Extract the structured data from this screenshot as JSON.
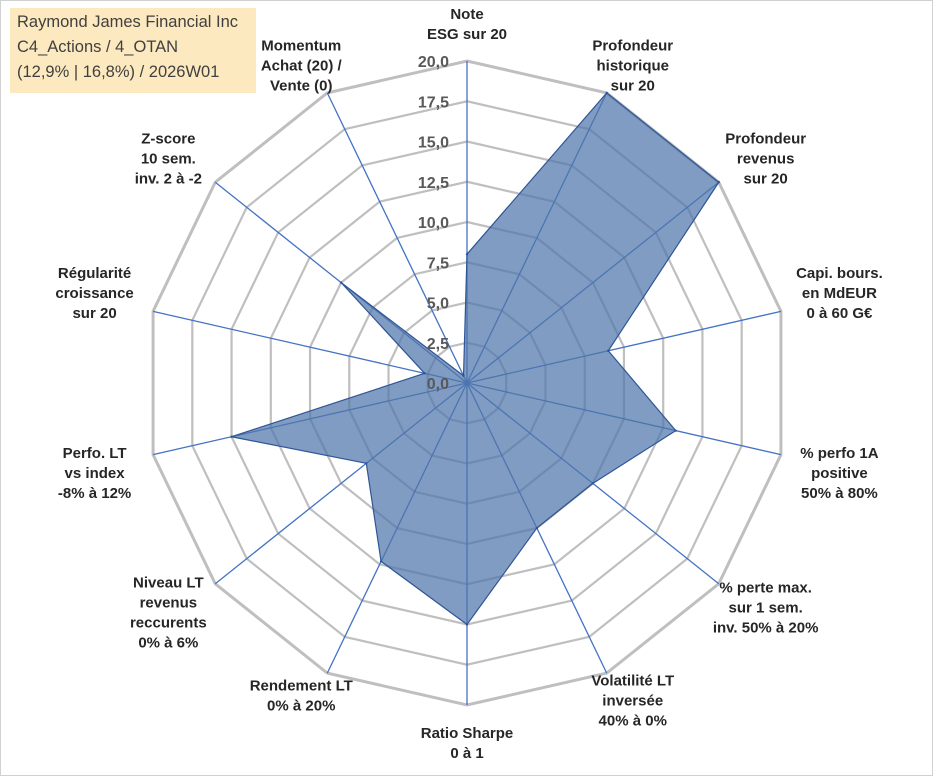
{
  "title_box": {
    "line1": "Raymond James Financial Inc",
    "line2": "C4_Actions / 4_OTAN",
    "line3": "(12,9% | 16,8%) / 2026W01"
  },
  "chart_data": {
    "type": "radar",
    "title": "Raymond James Financial Inc",
    "subtitle": "C4_Actions / 4_OTAN (12,9% | 16,8%) / 2026W01",
    "range": [
      0,
      20
    ],
    "tick_step": 2.5,
    "tick_labels": [
      "0,0",
      "2,5",
      "5,0",
      "7,5",
      "10,0",
      "12,5",
      "15,0",
      "17,5",
      "20,0"
    ],
    "axes": [
      "Note\nESG sur 20",
      "Profondeur\nhistorique\nsur 20",
      "Profondeur\nrevenus\nsur 20",
      "Capi. bours.\nen MdEUR\n0 à 60 G€",
      "% perfo 1A\npositive\n50% à 80%",
      "% perte max.\nsur 1 sem.\ninv. 50% à 20%",
      "Volatilité LT\ninversée\n40% à 0%",
      "Ratio Sharpe\n0 à 1",
      "Rendement LT\n0% à 20%",
      "Niveau LT\nrevenus\nreccurents\n0% à 6%",
      "Perfo. LT\nvs index\n-8% à 12%",
      "Régularité\ncroissance\nsur 20",
      "Z-score\n10 sem.\ninv. 2 à -2",
      "Momentum\nAchat (20) /\nVente (0)"
    ],
    "series": [
      {
        "name": "Raymond James Financial Inc",
        "values": [
          8.0,
          20.0,
          20.0,
          9.0,
          13.3,
          10.0,
          10.0,
          15.0,
          12.3,
          8.0,
          15.0,
          2.7,
          10.0,
          0.5
        ],
        "fill": "#4f76aa",
        "fill_opacity": 0.72,
        "line_color": "#2f5597"
      }
    ],
    "grid_color": "#bfbfbf",
    "axis_color": "#4472c4"
  }
}
